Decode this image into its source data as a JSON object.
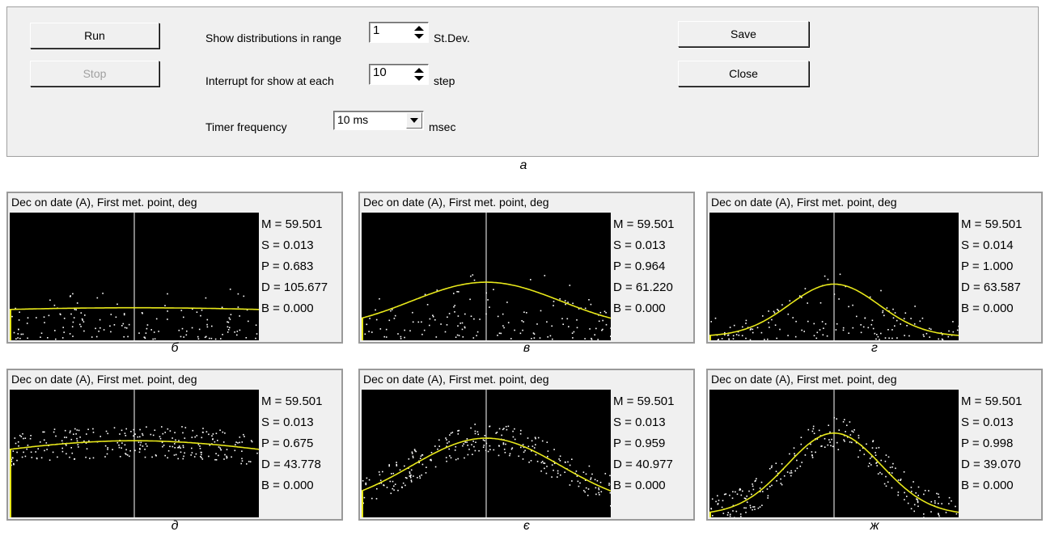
{
  "controls": {
    "run_label": "Run",
    "stop_label": "Stop",
    "save_label": "Save",
    "close_label": "Close",
    "range_label": "Show distributions in range",
    "range_value": "1",
    "range_unit": "St.Dev.",
    "interrupt_label": "Interrupt for show at each",
    "interrupt_value": "10",
    "interrupt_unit": "step",
    "timer_label": "Timer frequency",
    "timer_value": "10 ms",
    "timer_unit": "msec"
  },
  "figure_caption": "а",
  "colors": {
    "plot_bg": "#000000",
    "curve": "#e8e81a",
    "points": "#ffffff",
    "mean_line": "#ffffff"
  },
  "panels": [
    {
      "title": "Dec on date (A), First met. point, deg",
      "caption": "б",
      "M": "M = 59.501",
      "S": "S = 0.013",
      "P": "P = 0.683",
      "D": "D = 105.677",
      "B": "B = 0.000",
      "pdata": {
        "scatter": "band",
        "spread": 0.8,
        "peak": 0.255,
        "floor": 0.18
      }
    },
    {
      "title": "Dec on date (A), First met. point, deg",
      "caption": "в",
      "M": "M = 59.501",
      "S": "S = 0.013",
      "P": "P = 0.964",
      "D": "D = 61.220",
      "B": "B = 0.000",
      "pdata": {
        "scatter": "band",
        "spread": 0.3,
        "peak": 0.455,
        "floor": 0.08
      }
    },
    {
      "title": "Dec on date (A), First met. point, deg",
      "caption": "г",
      "M": "M = 59.501",
      "S": "S = 0.014",
      "P": "P = 1.000",
      "D": "D = 63.587",
      "B": "B = 0.000",
      "pdata": {
        "scatter": "band",
        "spread": 0.18,
        "peak": 0.44,
        "floor": 0.03
      }
    },
    {
      "title": "Dec on date (A), First met. point, deg",
      "caption": "д",
      "M": "M = 59.501",
      "S": "S = 0.013",
      "P": "P = 0.675",
      "D": "D = 43.778",
      "B": "B = 0.000",
      "pdata": {
        "scatter": "cloud",
        "spread": 0.7,
        "peak": 0.6,
        "floor": 0.3
      }
    },
    {
      "title": "Dec on date (A), First met. point, deg",
      "caption": "є",
      "M": "M = 59.501",
      "S": "S = 0.013",
      "P": "P = 0.959",
      "D": "D = 40.977",
      "B": "B = 0.000",
      "pdata": {
        "scatter": "cloud",
        "spread": 0.3,
        "peak": 0.62,
        "floor": 0.07
      }
    },
    {
      "title": "Dec on date (A), First met. point, deg",
      "caption": "ж",
      "M": "M = 59.501",
      "S": "S = 0.013",
      "P": "P = 0.998",
      "D": "D = 39.070",
      "B": "B = 0.000",
      "pdata": {
        "scatter": "cloud",
        "spread": 0.19,
        "peak": 0.66,
        "floor": 0.02
      }
    }
  ]
}
